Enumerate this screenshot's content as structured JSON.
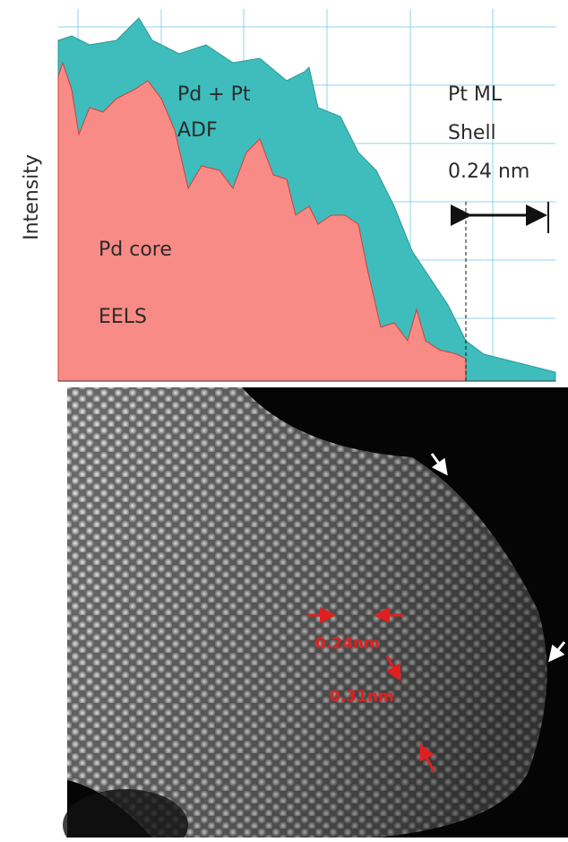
{
  "profile": {
    "y_label": "Intensity",
    "adf_label_1": "Pd + Pt",
    "adf_label_2": "ADF",
    "shell_label_1": "Pt ML",
    "shell_label_2": "Shell",
    "shell_width": "0.24 nm",
    "core_label_1": "Pd core",
    "core_label_2": "EELS"
  },
  "image": {
    "spacing_1": "0.24nm",
    "spacing_2": "0.31nm"
  }
}
